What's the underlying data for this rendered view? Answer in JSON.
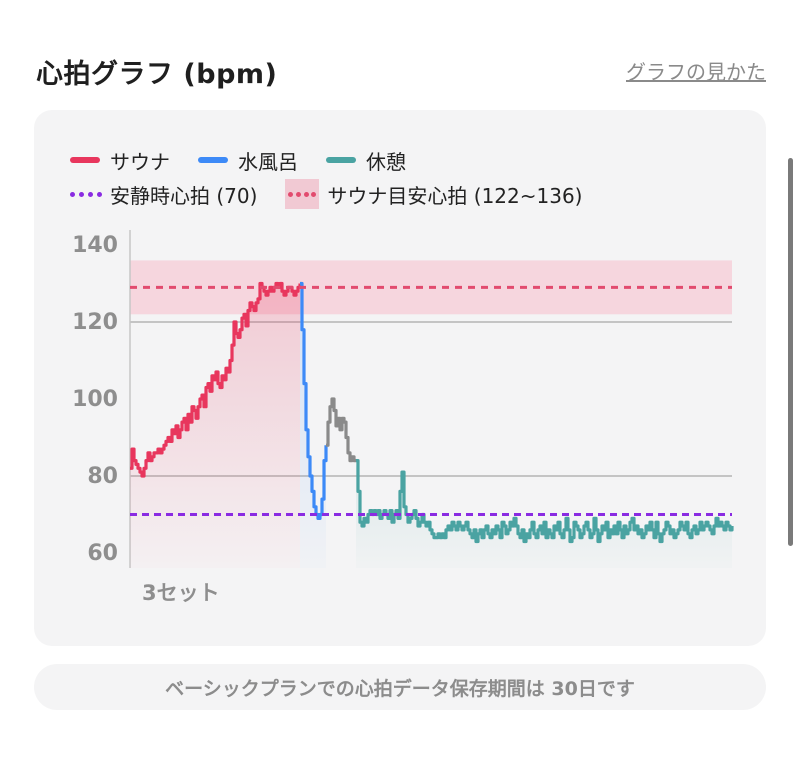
{
  "header": {
    "title": "心拍グラフ (bpm)",
    "guide_link": "グラフの見かた"
  },
  "legend": {
    "sauna": "サウナ",
    "cold_bath": "水風呂",
    "rest": "休憩",
    "resting_hr": "安静時心拍 (70)",
    "target_range": "サウナ目安心拍 (122~136)"
  },
  "colors": {
    "sauna": "#e8365d",
    "cold_bath": "#3d8af7",
    "rest": "#4aa3a2",
    "transition": "#8a8a8a",
    "resting_hr": "#8a2be2",
    "target_line": "#e24b6e",
    "target_band": "#f6d6de"
  },
  "footer": {
    "note": "ベーシックプランでの心拍データ保存期間は 30日です"
  },
  "chart_data": {
    "type": "line",
    "x_label": "3セット",
    "y_ticks": [
      60,
      80,
      100,
      120,
      140
    ],
    "ylim": [
      60,
      140
    ],
    "grid": true,
    "legend_position": "top",
    "reference_lines": [
      {
        "name": "安静時心拍 (70)",
        "value": 70
      },
      {
        "name": "サウナ目安心拍 (122~136)",
        "value": 129,
        "band": [
          122,
          136
        ]
      }
    ],
    "series": [
      {
        "name": "サウナ",
        "x": [
          0,
          2,
          4,
          6,
          8,
          10,
          12,
          14,
          16,
          18,
          20,
          22,
          24,
          26,
          28,
          30,
          32,
          34,
          36,
          38,
          40,
          42,
          44,
          46,
          48,
          50,
          52,
          54,
          56,
          58,
          60,
          62,
          64,
          66,
          68,
          70,
          72,
          74,
          76,
          78,
          80,
          82,
          84,
          86,
          88,
          90,
          92,
          94,
          96,
          98,
          100,
          102,
          104,
          106,
          108,
          110,
          112,
          114,
          116,
          118,
          120,
          122,
          124,
          126,
          128,
          130,
          132,
          134,
          136,
          138,
          140,
          142,
          144,
          146,
          148,
          150,
          152,
          154,
          156,
          158,
          160,
          162,
          164,
          166,
          168,
          170
        ],
        "y": [
          82,
          87,
          84,
          83,
          82,
          81,
          80,
          82,
          84,
          86,
          84,
          85,
          86,
          86,
          87,
          86,
          87,
          88,
          89,
          90,
          89,
          92,
          91,
          93,
          90,
          92,
          94,
          95,
          92,
          96,
          94,
          98,
          97,
          95,
          98,
          100,
          101,
          98,
          103,
          104,
          102,
          106,
          105,
          107,
          104,
          103,
          106,
          105,
          108,
          107,
          110,
          114,
          120,
          117,
          116,
          118,
          121,
          122,
          119,
          123,
          125,
          124,
          123,
          125,
          126,
          130,
          129,
          128,
          127,
          128,
          129,
          128,
          129,
          130,
          129,
          130,
          128,
          127,
          128,
          129,
          129,
          128,
          127,
          128,
          129,
          130
        ]
      },
      {
        "name": "水風呂",
        "x": [
          170,
          172,
          174,
          176,
          178,
          180,
          182,
          184,
          186,
          188,
          190,
          192,
          194,
          196
        ],
        "y": [
          130,
          118,
          104,
          92,
          85,
          80,
          76,
          72,
          70,
          69,
          70,
          74,
          84,
          88
        ]
      },
      {
        "name": "transition",
        "x": [
          196,
          198,
          200,
          202,
          204,
          206,
          208,
          210,
          212,
          214,
          216,
          218,
          220,
          222,
          224,
          226
        ],
        "y": [
          88,
          94,
          98,
          100,
          97,
          93,
          95,
          92,
          95,
          94,
          90,
          86,
          84,
          85,
          84,
          84
        ]
      },
      {
        "name": "休憩",
        "x": [
          226,
          228,
          230,
          232,
          234,
          236,
          238,
          240,
          242,
          244,
          246,
          248,
          250,
          252,
          254,
          256,
          258,
          260,
          262,
          264,
          266,
          268,
          270,
          272,
          274,
          276,
          278,
          280,
          282,
          284,
          286,
          288,
          290,
          292,
          294,
          296,
          298,
          300,
          302,
          304,
          306,
          308,
          310,
          312,
          314,
          316,
          318,
          320,
          322,
          324,
          326,
          328,
          330,
          332,
          334,
          336,
          338,
          340,
          342,
          344,
          346,
          348,
          350,
          352,
          354,
          356,
          358,
          360,
          362,
          364,
          366,
          368,
          370,
          372,
          374,
          376,
          378,
          380,
          382,
          384,
          386,
          388,
          390,
          392,
          394,
          396,
          398,
          400,
          402,
          404,
          406,
          408,
          410,
          412,
          414,
          416,
          418,
          420,
          422,
          424,
          426,
          428,
          430,
          432,
          434,
          436,
          438,
          440,
          442,
          444,
          446,
          448,
          450,
          452,
          454,
          456,
          458,
          460,
          462,
          464,
          466,
          468,
          470,
          472,
          474,
          476,
          478,
          480,
          482,
          484,
          486,
          488,
          490,
          492,
          494,
          496,
          498,
          500,
          502,
          504,
          506,
          508,
          510,
          512,
          514,
          516,
          518,
          520,
          522,
          524,
          526,
          528,
          530,
          532,
          534,
          536,
          538,
          540,
          542,
          544,
          546,
          548,
          550,
          552,
          554,
          556,
          558,
          560,
          562,
          564,
          566,
          568,
          570,
          572,
          574,
          576,
          578,
          580,
          582,
          584,
          586,
          588,
          590,
          592,
          594,
          596,
          598,
          600,
          602
        ],
        "y": [
          84,
          76,
          68,
          67,
          69,
          68,
          70,
          71,
          70,
          71,
          70,
          71,
          69,
          70,
          71,
          70,
          69,
          71,
          68,
          70,
          71,
          69,
          76,
          81,
          72,
          70,
          68,
          69,
          70,
          71,
          69,
          67,
          68,
          70,
          68,
          67,
          68,
          66,
          65,
          64,
          64,
          65,
          64,
          65,
          64,
          66,
          67,
          66,
          68,
          67,
          66,
          68,
          67,
          66,
          67,
          68,
          66,
          65,
          64,
          66,
          63,
          65,
          66,
          64,
          66,
          67,
          65,
          64,
          66,
          65,
          67,
          66,
          64,
          68,
          67,
          65,
          66,
          68,
          67,
          69,
          67,
          65,
          64,
          66,
          63,
          65,
          64,
          66,
          68,
          65,
          64,
          66,
          67,
          65,
          68,
          64,
          66,
          65,
          64,
          67,
          66,
          68,
          65,
          64,
          66,
          69,
          66,
          63,
          64,
          68,
          67,
          66,
          64,
          65,
          67,
          68,
          66,
          64,
          65,
          69,
          66,
          63,
          65,
          67,
          66,
          68,
          64,
          66,
          65,
          67,
          65,
          68,
          66,
          64,
          67,
          65,
          66,
          68,
          69,
          66,
          67,
          65,
          66,
          64,
          65,
          67,
          66,
          68,
          66,
          64,
          68,
          65,
          63,
          65,
          66,
          68,
          67,
          65,
          66,
          64,
          65,
          66,
          68,
          67,
          66,
          68,
          65,
          64,
          66,
          67,
          65,
          66,
          68,
          66,
          67,
          68,
          67,
          66,
          65,
          67,
          69,
          67,
          68,
          67,
          66,
          68,
          67,
          66,
          67
        ]
      }
    ]
  }
}
